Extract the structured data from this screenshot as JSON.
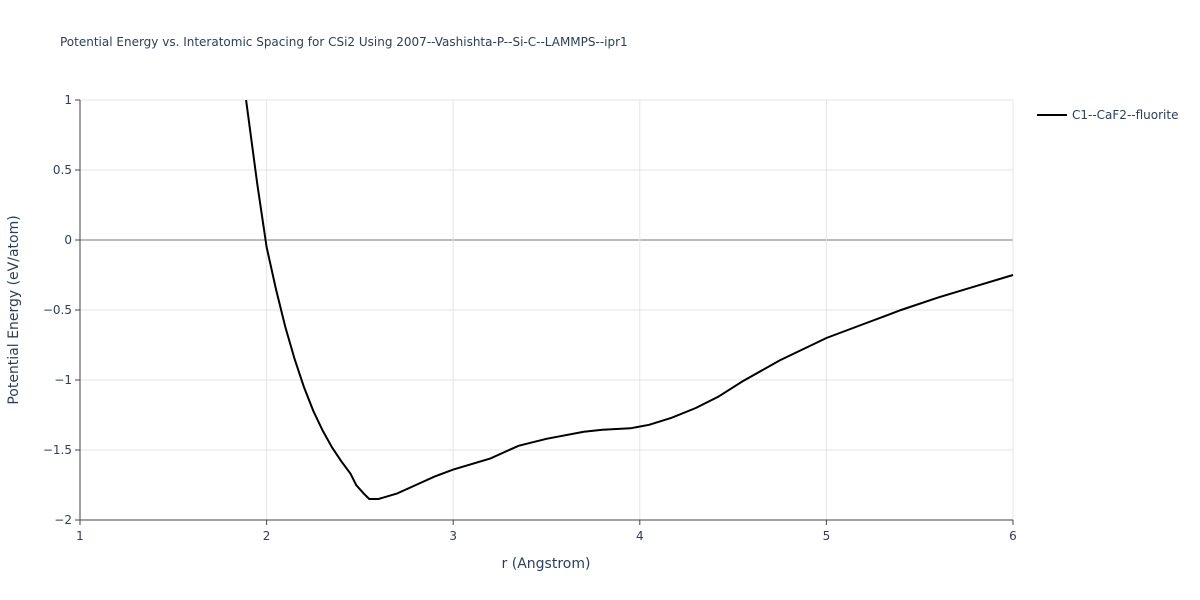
{
  "chart_data": {
    "type": "line",
    "title": "Potential Energy vs. Interatomic Spacing for CSi2 Using 2007--Vashishta-P--Si-C--LAMMPS--ipr1",
    "x_label": "r (Angstrom)",
    "y_label": "Potential Energy (eV/atom)",
    "xlim": [
      1,
      6
    ],
    "ylim": [
      -2,
      1
    ],
    "xticks": [
      1,
      2,
      3,
      4,
      5,
      6
    ],
    "yticks": [
      {
        "value": -2,
        "label": "−2"
      },
      {
        "value": -1.5,
        "label": "−1.5"
      },
      {
        "value": -1,
        "label": "−1"
      },
      {
        "value": -0.5,
        "label": "−0.5"
      },
      0,
      0.5,
      1
    ],
    "grid": true,
    "legend": "top-right",
    "series": [
      {
        "name": "C1--CaF2--fluorite",
        "color": "#000000",
        "x": [
          1.89,
          1.95,
          2.0,
          2.05,
          2.1,
          2.15,
          2.2,
          2.25,
          2.3,
          2.35,
          2.4,
          2.45,
          2.48,
          2.52,
          2.55,
          2.6,
          2.7,
          2.8,
          2.9,
          3.0,
          3.2,
          3.35,
          3.5,
          3.7,
          3.8,
          3.95,
          4.05,
          4.17,
          4.3,
          4.42,
          4.55,
          4.75,
          5.0,
          5.2,
          5.4,
          5.6,
          5.8,
          6.0
        ],
        "values": [
          1,
          0.4,
          -0.05,
          -0.35,
          -0.62,
          -0.85,
          -1.05,
          -1.22,
          -1.36,
          -1.48,
          -1.58,
          -1.67,
          -1.75,
          -1.81,
          -1.85,
          -1.85,
          -1.81,
          -1.75,
          -1.69,
          -1.64,
          -1.56,
          -1.47,
          -1.42,
          -1.37,
          -1.355,
          -1.345,
          -1.32,
          -1.27,
          -1.2,
          -1.12,
          -1.01,
          -0.86,
          -0.7,
          -0.6,
          -0.5,
          -0.41,
          -0.33,
          -0.25
        ]
      }
    ]
  }
}
